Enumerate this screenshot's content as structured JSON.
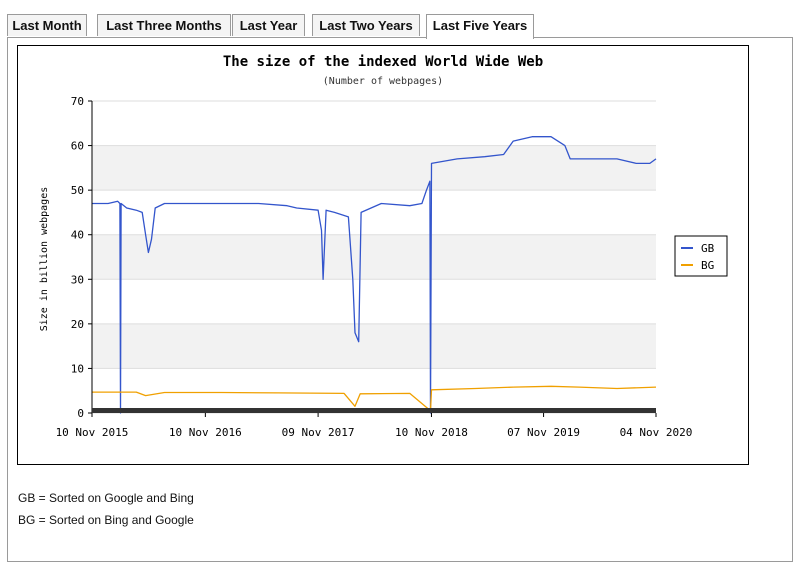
{
  "tabs": [
    {
      "label": "Last Month",
      "active": false
    },
    {
      "label": "Last Three Months",
      "active": false
    },
    {
      "label": "Last Year",
      "active": false
    },
    {
      "label": "Last Two Years",
      "active": false
    },
    {
      "label": "Last Five Years",
      "active": true
    }
  ],
  "notes": {
    "gb": "GB = Sorted on Google and Bing",
    "bg": "BG = Sorted on Bing and Google"
  },
  "chart_data": {
    "type": "line",
    "title": "The size of the indexed World Wide Web",
    "subtitle": "(Number of webpages)",
    "ylabel": "Size in billion webpages",
    "xlabel": "",
    "ylim": [
      0,
      70
    ],
    "yticks": [
      0,
      10,
      20,
      30,
      40,
      50,
      60,
      70
    ],
    "xlim": [
      "2015-11-10",
      "2020-11-04"
    ],
    "xticks": [
      {
        "date": "2015-11-10",
        "label": "10 Nov 2015"
      },
      {
        "date": "2016-11-10",
        "label": "10 Nov 2016"
      },
      {
        "date": "2017-11-09",
        "label": "09 Nov 2017"
      },
      {
        "date": "2018-11-10",
        "label": "10 Nov 2018"
      },
      {
        "date": "2019-11-07",
        "label": "07 Nov 2019"
      },
      {
        "date": "2020-11-04",
        "label": "04 Nov 2020"
      }
    ],
    "grid": true,
    "legend_position": "right",
    "series": [
      {
        "name": "GB",
        "color": "#3355cc",
        "points": [
          [
            "2015-11-10",
            47
          ],
          [
            "2016-01-01",
            47
          ],
          [
            "2016-02-01",
            47.5
          ],
          [
            "2016-02-08",
            47
          ],
          [
            "2016-02-10",
            0
          ],
          [
            "2016-02-12",
            47
          ],
          [
            "2016-03-01",
            46
          ],
          [
            "2016-04-01",
            45.5
          ],
          [
            "2016-04-20",
            45
          ],
          [
            "2016-05-01",
            40
          ],
          [
            "2016-05-10",
            36
          ],
          [
            "2016-05-20",
            39
          ],
          [
            "2016-06-01",
            46
          ],
          [
            "2016-07-01",
            47
          ],
          [
            "2016-09-01",
            47
          ],
          [
            "2016-11-10",
            47
          ],
          [
            "2017-02-01",
            47
          ],
          [
            "2017-05-01",
            47
          ],
          [
            "2017-08-01",
            46.5
          ],
          [
            "2017-09-01",
            46
          ],
          [
            "2017-11-09",
            45.5
          ],
          [
            "2017-11-20",
            41
          ],
          [
            "2017-11-25",
            30
          ],
          [
            "2017-12-05",
            45.5
          ],
          [
            "2018-01-01",
            45
          ],
          [
            "2018-02-15",
            44
          ],
          [
            "2018-03-01",
            30
          ],
          [
            "2018-03-08",
            18
          ],
          [
            "2018-03-20",
            16
          ],
          [
            "2018-03-28",
            45
          ],
          [
            "2018-06-01",
            47
          ],
          [
            "2018-09-01",
            46.5
          ],
          [
            "2018-10-10",
            47
          ],
          [
            "2018-10-25",
            50
          ],
          [
            "2018-11-05",
            52
          ],
          [
            "2018-11-07",
            0
          ],
          [
            "2018-11-10",
            56
          ],
          [
            "2019-02-01",
            57
          ],
          [
            "2019-05-01",
            57.5
          ],
          [
            "2019-07-01",
            58
          ],
          [
            "2019-08-01",
            61
          ],
          [
            "2019-10-01",
            62
          ],
          [
            "2019-12-01",
            62
          ],
          [
            "2020-01-15",
            60
          ],
          [
            "2020-02-01",
            57
          ],
          [
            "2020-04-01",
            57
          ],
          [
            "2020-07-01",
            57
          ],
          [
            "2020-09-01",
            56
          ],
          [
            "2020-10-15",
            56
          ],
          [
            "2020-11-04",
            57
          ]
        ]
      },
      {
        "name": "BG",
        "color": "#f0a000",
        "points": [
          [
            "2015-11-10",
            4.7
          ],
          [
            "2016-04-01",
            4.7
          ],
          [
            "2016-05-01",
            3.9
          ],
          [
            "2016-07-01",
            4.6
          ],
          [
            "2017-01-01",
            4.6
          ],
          [
            "2017-07-01",
            4.5
          ],
          [
            "2018-02-01",
            4.4
          ],
          [
            "2018-03-08",
            1.5
          ],
          [
            "2018-03-25",
            4.3
          ],
          [
            "2018-09-01",
            4.4
          ],
          [
            "2018-11-07",
            0.5
          ],
          [
            "2018-11-10",
            5.2
          ],
          [
            "2019-04-01",
            5.5
          ],
          [
            "2019-08-01",
            5.8
          ],
          [
            "2019-12-01",
            6.0
          ],
          [
            "2020-03-01",
            5.8
          ],
          [
            "2020-07-01",
            5.5
          ],
          [
            "2020-11-04",
            5.8
          ]
        ]
      }
    ]
  }
}
